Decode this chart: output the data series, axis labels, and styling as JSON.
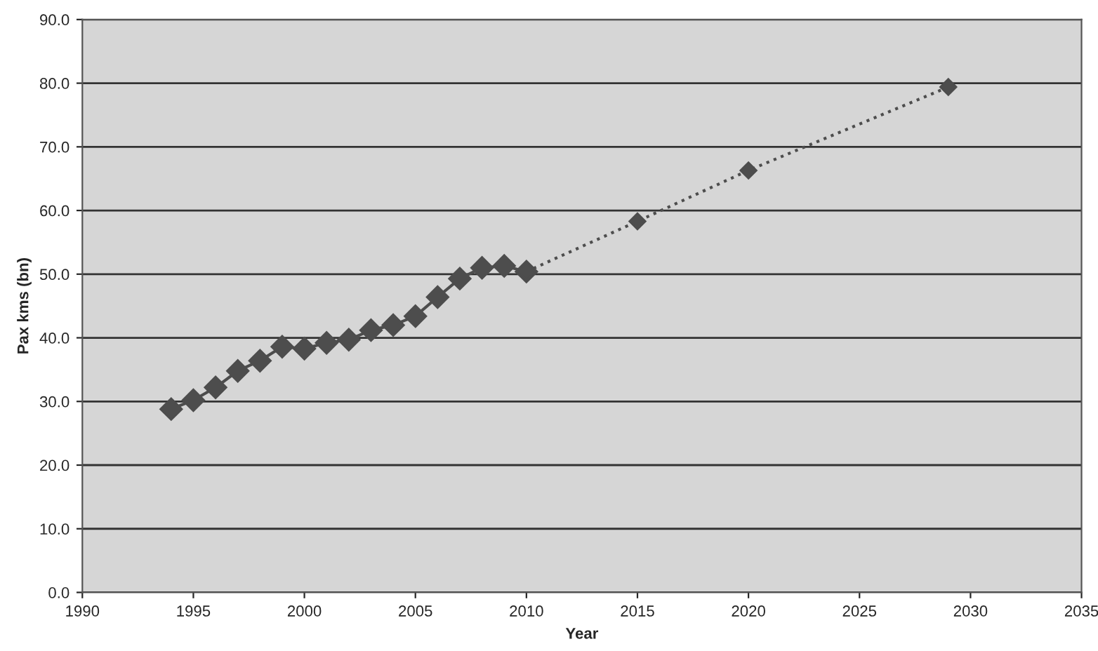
{
  "chart_data": {
    "type": "line",
    "xlabel": "Year",
    "ylabel": "Pax kms (bn)",
    "series": [
      {
        "color": "#4d4d4d",
        "line_style": "solid",
        "x": [
          1994,
          1995,
          1996,
          1997,
          1998,
          1999,
          2000,
          2001,
          2002,
          2003,
          2004,
          2005,
          2006,
          2007,
          2008,
          2009,
          2010
        ],
        "values": [
          28.8,
          30.2,
          32.2,
          34.8,
          36.4,
          38.6,
          38.3,
          39.2,
          39.7,
          41.2,
          42.0,
          43.4,
          46.4,
          49.3,
          51.0,
          51.3,
          50.4
        ]
      },
      {
        "color": "#4d4d4d",
        "line_style": "dotted",
        "x": [
          2010,
          2015,
          2020,
          2029
        ],
        "values": [
          50.4,
          58.3,
          66.3,
          79.4
        ]
      }
    ],
    "marker": "diamond",
    "xlim": [
      1990,
      2035
    ],
    "xticks": [
      1990,
      1995,
      2000,
      2005,
      2010,
      2015,
      2020,
      2025,
      2030,
      2035
    ],
    "ylim": [
      0,
      90
    ],
    "yticks": [
      {
        "value": 0,
        "label": "0.0"
      },
      {
        "value": 10,
        "label": "10.0"
      },
      {
        "value": 20,
        "label": "20.0"
      },
      {
        "value": 30,
        "label": "30.0"
      },
      {
        "value": 40,
        "label": "40.0"
      },
      {
        "value": 50,
        "label": "50.0"
      },
      {
        "value": 60,
        "label": "60.0"
      },
      {
        "value": 70,
        "label": "70.0"
      },
      {
        "value": 80,
        "label": "80.0"
      },
      {
        "value": 90,
        "label": "90.0"
      }
    ],
    "grid": "y",
    "legend": false
  }
}
